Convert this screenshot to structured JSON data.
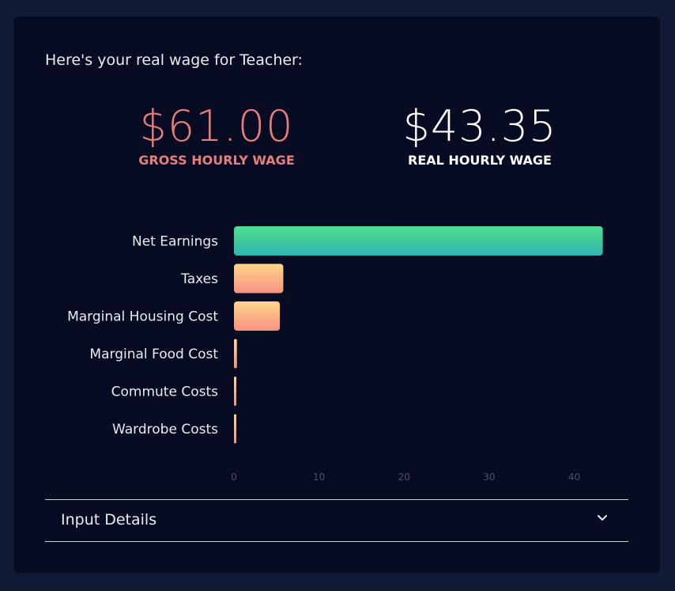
{
  "intro": "Here's your real wage for Teacher:",
  "gross": {
    "value": "$61.00",
    "label": "GROSS HOURLY WAGE"
  },
  "real": {
    "value": "$43.35",
    "label": "REAL HOURLY WAGE"
  },
  "colors": {
    "gross": "#e77d7d",
    "net_top": "#4fe08c",
    "net_bottom": "#2fb5b0",
    "cost_top": "#ffd68a",
    "cost_bottom": "#f79184",
    "tick": "#4a5068"
  },
  "chart_data": {
    "type": "bar",
    "orientation": "horizontal",
    "categories": [
      "Net Earnings",
      "Taxes",
      "Marginal Housing Cost",
      "Marginal Food Cost",
      "Commute Costs",
      "Wardrobe Costs"
    ],
    "values": [
      43.35,
      5.8,
      5.4,
      0.35,
      0.25,
      0.25
    ],
    "xticks": [
      0,
      10,
      20,
      30,
      40
    ],
    "xlim": [
      0,
      44.5
    ],
    "grid": false,
    "legend": "none"
  },
  "details": {
    "label": "Input Details",
    "icon": "chevron-down-icon"
  }
}
